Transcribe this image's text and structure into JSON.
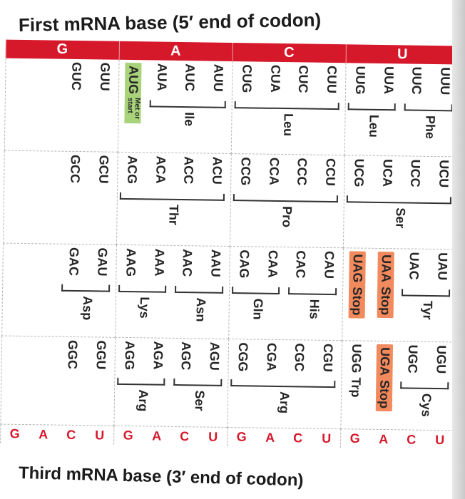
{
  "titles": {
    "first_base": "First mRNA base (5′ end of codon)",
    "third_base": "Third mRNA base (3′ end of codon)"
  },
  "row_labels": [
    "U",
    "C",
    "A",
    "G"
  ],
  "third_labels": [
    "U",
    "C",
    "A",
    "G"
  ],
  "rows": [
    {
      "cells": [
        {
          "codons": [
            "UUU",
            "UUC",
            "UUA",
            "UUG"
          ],
          "groups": [
            {
              "aa": "Phe",
              "start": 0,
              "end": 1
            },
            {
              "aa": "Leu",
              "start": 2,
              "end": 3
            }
          ]
        },
        {
          "codons": [
            "UCU",
            "UCC",
            "UCA",
            "UCG"
          ],
          "groups": [
            {
              "aa": "Ser",
              "start": 0,
              "end": 3
            }
          ]
        },
        {
          "codons": [
            "UAU",
            "UAC",
            "UAA",
            "UAG"
          ],
          "groups": [
            {
              "aa": "Tyr",
              "start": 0,
              "end": 1
            }
          ],
          "inline": {
            "2": "Stop",
            "3": "Stop"
          }
        },
        {
          "codons": [
            "UGU",
            "UGC",
            "UGA",
            "UGG"
          ],
          "groups": [
            {
              "aa": "Cys",
              "start": 0,
              "end": 1
            }
          ],
          "inline": {
            "2": "Stop",
            "3": "Trp"
          }
        }
      ]
    },
    {
      "cells": [
        {
          "codons": [
            "CUU",
            "CUC",
            "CUA",
            "CUG"
          ],
          "groups": [
            {
              "aa": "Leu",
              "start": 0,
              "end": 3
            }
          ]
        },
        {
          "codons": [
            "CCU",
            "CCC",
            "CCA",
            "CCG"
          ],
          "groups": [
            {
              "aa": "Pro",
              "start": 0,
              "end": 3
            }
          ]
        },
        {
          "codons": [
            "CAU",
            "CAC",
            "CAA",
            "CAG"
          ],
          "groups": [
            {
              "aa": "His",
              "start": 0,
              "end": 1
            },
            {
              "aa": "Gln",
              "start": 2,
              "end": 3
            }
          ]
        },
        {
          "codons": [
            "CGU",
            "CGC",
            "CGA",
            "CGG"
          ],
          "groups": [
            {
              "aa": "Arg",
              "start": 0,
              "end": 3
            }
          ]
        }
      ]
    },
    {
      "cells": [
        {
          "codons": [
            "AUU",
            "AUC",
            "AUA",
            "AUG"
          ],
          "groups": [
            {
              "aa": "Ile",
              "start": 0,
              "end": 2
            }
          ],
          "met": {
            "index": 3,
            "label": "Met or start"
          }
        },
        {
          "codons": [
            "ACU",
            "ACC",
            "ACA",
            "ACG"
          ],
          "groups": [
            {
              "aa": "Thr",
              "start": 0,
              "end": 3
            }
          ]
        },
        {
          "codons": [
            "AAU",
            "AAC",
            "AAA",
            "AAG"
          ],
          "groups": [
            {
              "aa": "Asn",
              "start": 0,
              "end": 1
            },
            {
              "aa": "Lys",
              "start": 2,
              "end": 3
            }
          ]
        },
        {
          "codons": [
            "AGU",
            "AGC",
            "AGA",
            "AGG"
          ],
          "groups": [
            {
              "aa": "Ser",
              "start": 0,
              "end": 1
            },
            {
              "aa": "Arg",
              "start": 2,
              "end": 3
            }
          ]
        }
      ]
    },
    {
      "cells": [
        {
          "codons": [
            "GUU",
            "GUC"
          ],
          "groups": []
        },
        {
          "codons": [
            "GCU",
            "GCC"
          ],
          "groups": []
        },
        {
          "codons": [
            "GAU",
            "GAC"
          ],
          "groups": [
            {
              "aa": "Asp",
              "start": 0,
              "end": 1
            }
          ]
        },
        {
          "codons": [
            "GGU",
            "GGC"
          ],
          "groups": []
        }
      ]
    }
  ],
  "colors": {
    "accent_red": "#d6182b",
    "stop_orange": "#f28a5e",
    "met_green": "#a8d37a"
  }
}
